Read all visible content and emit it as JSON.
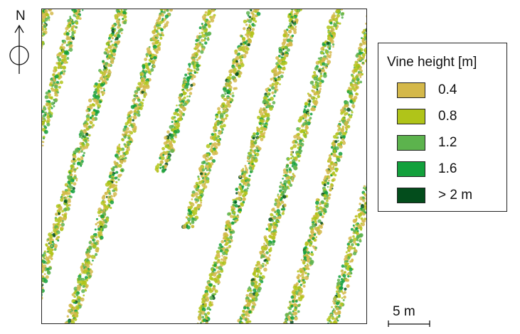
{
  "north_arrow": {
    "label": "N",
    "icon": "north-arrow-icon"
  },
  "legend": {
    "title": "Vine height [m]",
    "items": [
      {
        "label": "0.4",
        "color": "#d4b84a"
      },
      {
        "label": "0.8",
        "color": "#b0c419"
      },
      {
        "label": "1.2",
        "color": "#5cb34d"
      },
      {
        "label": "1.6",
        "color": "#12a03c"
      },
      {
        "label": "> 2 m",
        "color": "#034d1c"
      }
    ]
  },
  "scale_bar": {
    "label": "5 m"
  },
  "map": {
    "row_colors": [
      "#d4b84a",
      "#b0c419",
      "#5cb34d",
      "#12a03c",
      "#034d1c"
    ]
  }
}
